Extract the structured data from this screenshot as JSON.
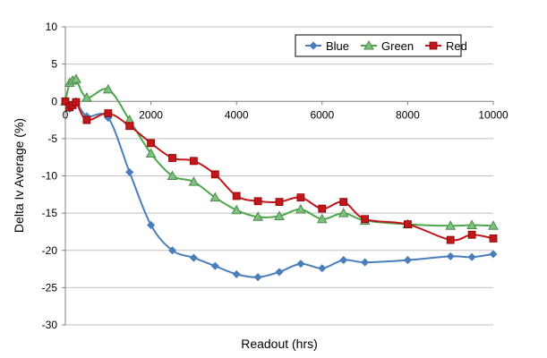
{
  "chart_data": {
    "type": "line",
    "xlabel": "Readout (hrs)",
    "ylabel": "Delta Iv Average (%)",
    "xlim": [
      0,
      10000
    ],
    "ylim": [
      -30,
      10
    ],
    "xticks": [
      "0",
      "2000",
      "4000",
      "6000",
      "8000",
      "10000"
    ],
    "yticks": [
      "10",
      "5",
      "0",
      "-5",
      "-10",
      "-15",
      "-20",
      "-25",
      "-30"
    ],
    "grid": "horizontal",
    "legend_position": "top-right",
    "series": [
      {
        "name": "Blue",
        "color": "#4a7ebb",
        "marker": "diamond",
        "x": [
          0,
          100,
          168,
          250,
          500,
          1000,
          1500,
          2000,
          2500,
          3000,
          3500,
          4000,
          4500,
          5000,
          5500,
          6000,
          6500,
          7000,
          8000,
          9000,
          9500,
          10000
        ],
        "y": [
          0,
          -1.0,
          -0.5,
          0.0,
          -2.0,
          -2.2,
          -9.5,
          -16.6,
          -20.0,
          -21.0,
          -22.1,
          -23.2,
          -23.6,
          -22.9,
          -21.8,
          -22.4,
          -21.3,
          -21.6,
          -21.3,
          -20.8,
          -20.9,
          -20.5
        ]
      },
      {
        "name": "Green",
        "color": "#4aa84a",
        "marker": "triangle",
        "x": [
          0,
          100,
          168,
          250,
          500,
          1000,
          1500,
          2000,
          2500,
          3000,
          3500,
          4000,
          4500,
          5000,
          5500,
          6000,
          6500,
          7000,
          8000,
          9000,
          9500,
          10000
        ],
        "y": [
          0,
          2.5,
          2.8,
          3.0,
          0.5,
          1.6,
          -2.5,
          -7.0,
          -10.0,
          -10.8,
          -12.9,
          -14.6,
          -15.5,
          -15.4,
          -14.5,
          -15.8,
          -15.0,
          -16.0,
          -16.5,
          -16.7,
          -16.6,
          -16.7
        ]
      },
      {
        "name": "Red",
        "color": "#c0171d",
        "marker": "square",
        "x": [
          0,
          100,
          168,
          250,
          500,
          1000,
          1500,
          2000,
          2500,
          3000,
          3500,
          4000,
          4500,
          5000,
          5500,
          6000,
          6500,
          7000,
          8000,
          9000,
          9500,
          10000
        ],
        "y": [
          0,
          -0.8,
          -0.5,
          -0.1,
          -2.5,
          -1.6,
          -3.3,
          -5.6,
          -7.6,
          -8.0,
          -9.8,
          -12.7,
          -13.4,
          -13.5,
          -12.9,
          -14.4,
          -13.5,
          -15.8,
          -16.5,
          -18.6,
          -17.9,
          -18.4
        ]
      }
    ]
  }
}
